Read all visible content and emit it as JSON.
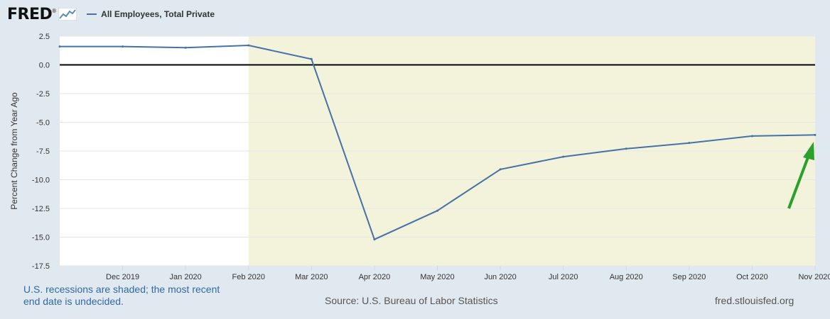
{
  "header": {
    "logo_text": "FRED",
    "logo_mark": "®",
    "logo_icon": "line-graph-icon",
    "legend_label": "All Employees, Total Private"
  },
  "colors": {
    "background": "#e1e9f0",
    "plot_background": "#ffffff",
    "recession_shade": "#f3f3db",
    "series": "#4572a7",
    "zero_line": "#000000",
    "annotation_arrow": "#2ca02c"
  },
  "chart_data": {
    "type": "line",
    "title": "",
    "xlabel": "",
    "ylabel": "Percent Change from Year Ago",
    "ylim": [
      -17.5,
      2.5
    ],
    "yticks": [
      2.5,
      0.0,
      -2.5,
      -5.0,
      -7.5,
      -10.0,
      -12.5,
      -15.0,
      -17.5
    ],
    "ytick_labels": [
      "2.5",
      "0.0",
      "-2.5",
      "-5.0",
      "-7.5",
      "-10.0",
      "-12.5",
      "-15.0",
      "-17.5"
    ],
    "x": [
      "2019-11",
      "2019-12",
      "2020-01",
      "2020-02",
      "2020-03",
      "2020-04",
      "2020-05",
      "2020-06",
      "2020-07",
      "2020-08",
      "2020-09",
      "2020-10",
      "2020-11"
    ],
    "xtick_labels": [
      "",
      "Dec 2019",
      "Jan 2020",
      "Feb 2020",
      "Mar 2020",
      "Apr 2020",
      "May 2020",
      "Jun 2020",
      "Jul 2020",
      "Aug 2020",
      "Sep 2020",
      "Oct 2020",
      "Nov 2020"
    ],
    "series": [
      {
        "name": "All Employees, Total Private",
        "values": [
          1.6,
          1.6,
          1.5,
          1.7,
          0.5,
          -15.2,
          -12.7,
          -9.1,
          -8.0,
          -7.3,
          -6.8,
          -6.2,
          -6.1
        ]
      }
    ],
    "recession": {
      "start": "2020-02",
      "end": "2020-11"
    },
    "zero_line": 0,
    "grid": true,
    "legend": "top-left",
    "annotation": {
      "type": "arrow",
      "points_to": "2020-11"
    }
  },
  "footer": {
    "note": "U.S. recessions are shaded; the most recent end date is undecided.",
    "source": "Source: U.S. Bureau of Labor Statistics",
    "site": "fred.stlouisfed.org"
  }
}
